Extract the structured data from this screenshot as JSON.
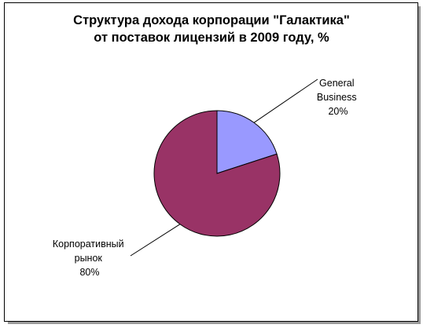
{
  "chart_data": {
    "type": "pie",
    "title_lines": [
      "Структура дохода корпорации \"Галактика\"",
      "от поставок лицензий в 2009 году, %"
    ],
    "slices": [
      {
        "label_lines": [
          "General",
          "Business"
        ],
        "percent_label": "20%",
        "value": 20,
        "color": "#9999FF"
      },
      {
        "label_lines": [
          "Корпоративный",
          "рынок"
        ],
        "percent_label": "80%",
        "value": 80,
        "color": "#993366"
      }
    ],
    "legend": "none"
  }
}
